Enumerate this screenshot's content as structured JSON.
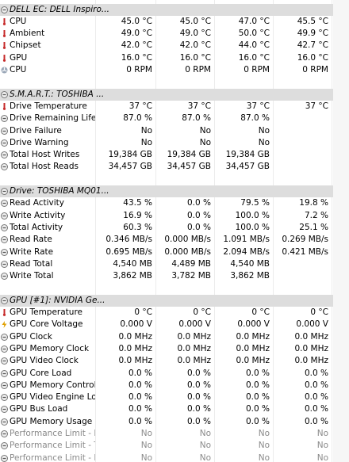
{
  "sections": [
    {
      "title": "DELL EC: DELL Inspiro...",
      "rows": [
        {
          "label": "CPU",
          "values": [
            "45.0 °C",
            "45.0 °C",
            "47.0 °C",
            "45.5 °C"
          ]
        },
        {
          "label": "Ambient",
          "values": [
            "49.0 °C",
            "49.0 °C",
            "50.0 °C",
            "49.9 °C"
          ]
        },
        {
          "label": "Chipset",
          "values": [
            "42.0 °C",
            "42.0 °C",
            "44.0 °C",
            "42.7 °C"
          ]
        },
        {
          "label": "GPU",
          "values": [
            "16.0 °C",
            "16.0 °C",
            "16.0 °C",
            "16.0 °C"
          ]
        },
        {
          "label": "CPU",
          "values": [
            "0 RPM",
            "0 RPM",
            "0 RPM",
            "0 RPM"
          ]
        }
      ]
    },
    {
      "title": "S.M.A.R.T.: TOSHIBA ...",
      "rows": [
        {
          "label": "Drive Temperature",
          "values": [
            "37 °C",
            "37 °C",
            "37 °C",
            "37 °C"
          ]
        },
        {
          "label": "Drive Remaining Life",
          "values": [
            "87.0 %",
            "87.0 %",
            "87.0 %",
            null
          ]
        },
        {
          "label": "Drive Failure",
          "values": [
            "No",
            "No",
            "No",
            null
          ]
        },
        {
          "label": "Drive Warning",
          "values": [
            "No",
            "No",
            "No",
            null
          ]
        },
        {
          "label": "Total Host Writes",
          "values": [
            "19,384 GB",
            "19,384 GB",
            "19,384 GB",
            null
          ]
        },
        {
          "label": "Total Host Reads",
          "values": [
            "34,457 GB",
            "34,457 GB",
            "34,457 GB",
            null
          ]
        }
      ]
    },
    {
      "title": "Drive: TOSHIBA MQ01...",
      "rows": [
        {
          "label": "Read Activity",
          "values": [
            "43.5 %",
            "0.0 %",
            "79.5 %",
            "19.8 %"
          ]
        },
        {
          "label": "Write Activity",
          "values": [
            "16.9 %",
            "0.0 %",
            "100.0 %",
            "7.2 %"
          ]
        },
        {
          "label": "Total Activity",
          "values": [
            "60.3 %",
            "0.0 %",
            "100.0 %",
            "25.1 %"
          ]
        },
        {
          "label": "Read Rate",
          "values": [
            "0.346 MB/s",
            "0.000 MB/s",
            "1.091 MB/s",
            "0.269 MB/s"
          ]
        },
        {
          "label": "Write Rate",
          "values": [
            "0.695 MB/s",
            "0.000 MB/s",
            "2.094 MB/s",
            "0.421 MB/s"
          ]
        },
        {
          "label": "Read Total",
          "values": [
            "4,540 MB",
            "4,489 MB",
            "4,540 MB",
            null
          ]
        },
        {
          "label": "Write Total",
          "values": [
            "3,862 MB",
            "3,782 MB",
            "3,862 MB",
            null
          ]
        }
      ]
    },
    {
      "title": "GPU [#1]: NVIDIA Ge...",
      "rows": [
        {
          "label": "GPU Temperature",
          "values": [
            "0 °C",
            "0 °C",
            "0 °C",
            "0 °C"
          ]
        },
        {
          "label": "GPU Core Voltage",
          "values": [
            "0.000 V",
            "0.000 V",
            "0.000 V",
            "0.000 V"
          ]
        },
        {
          "label": "GPU Clock",
          "values": [
            "0.0 MHz",
            "0.0 MHz",
            "0.0 MHz",
            "0.0 MHz"
          ]
        },
        {
          "label": "GPU Memory Clock",
          "values": [
            "0.0 MHz",
            "0.0 MHz",
            "0.0 MHz",
            "0.0 MHz"
          ]
        },
        {
          "label": "GPU Video Clock",
          "values": [
            "0.0 MHz",
            "0.0 MHz",
            "0.0 MHz",
            "0.0 MHz"
          ]
        },
        {
          "label": "GPU Core Load",
          "values": [
            "0.0 %",
            "0.0 %",
            "0.0 %",
            "0.0 %"
          ]
        },
        {
          "label": "GPU Memory Controlle...",
          "values": [
            "0.0 %",
            "0.0 %",
            "0.0 %",
            "0.0 %"
          ]
        },
        {
          "label": "GPU Video Engine Load",
          "values": [
            "0.0 %",
            "0.0 %",
            "0.0 %",
            "0.0 %"
          ]
        },
        {
          "label": "GPU Bus Load",
          "values": [
            "0.0 %",
            "0.0 %",
            "0.0 %",
            "0.0 %"
          ]
        },
        {
          "label": "GPU Memory Usage",
          "values": [
            "0.0 %",
            "0.0 %",
            "0.0 %",
            "0.0 %"
          ]
        },
        {
          "label": "Performance Limit - Po...",
          "values": [
            "No",
            "No",
            "No",
            "No"
          ]
        },
        {
          "label": "Performance Limit - Th...",
          "values": [
            "No",
            "No",
            "No",
            "No"
          ]
        },
        {
          "label": "Performance Limit - Re...",
          "values": [
            "No",
            "No",
            "No",
            "No"
          ]
        }
      ]
    }
  ]
}
